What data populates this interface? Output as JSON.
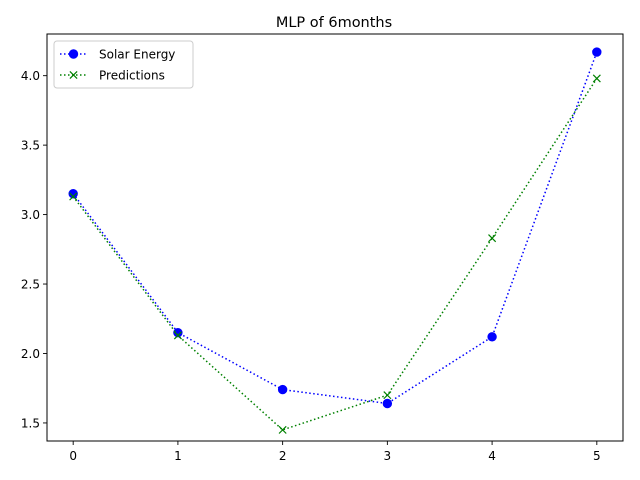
{
  "chart_data": {
    "type": "line",
    "title": "MLP of 6months",
    "xlabel": "",
    "ylabel": "",
    "x": [
      0,
      1,
      2,
      3,
      4,
      5
    ],
    "xlim": [
      -0.25,
      5.25
    ],
    "ylim": [
      1.37,
      4.3
    ],
    "xticks": [
      0,
      1,
      2,
      3,
      4,
      5
    ],
    "yticks": [
      1.5,
      2.0,
      2.5,
      3.0,
      3.5,
      4.0
    ],
    "xtick_labels": [
      "0",
      "1",
      "2",
      "3",
      "4",
      "5"
    ],
    "ytick_labels": [
      "1.5",
      "2.0",
      "2.5",
      "3.0",
      "3.5",
      "4.0"
    ],
    "grid": false,
    "legend_position": "upper-left",
    "series": [
      {
        "name": "Solar Energy",
        "values": [
          3.15,
          2.15,
          1.74,
          1.64,
          2.12,
          4.17
        ],
        "color": "#0000ff",
        "marker": "circle",
        "linestyle": "dotted"
      },
      {
        "name": "Predictions",
        "values": [
          3.13,
          2.13,
          1.45,
          1.7,
          2.83,
          3.98
        ],
        "color": "#008000",
        "marker": "x",
        "linestyle": "dotted"
      }
    ]
  }
}
